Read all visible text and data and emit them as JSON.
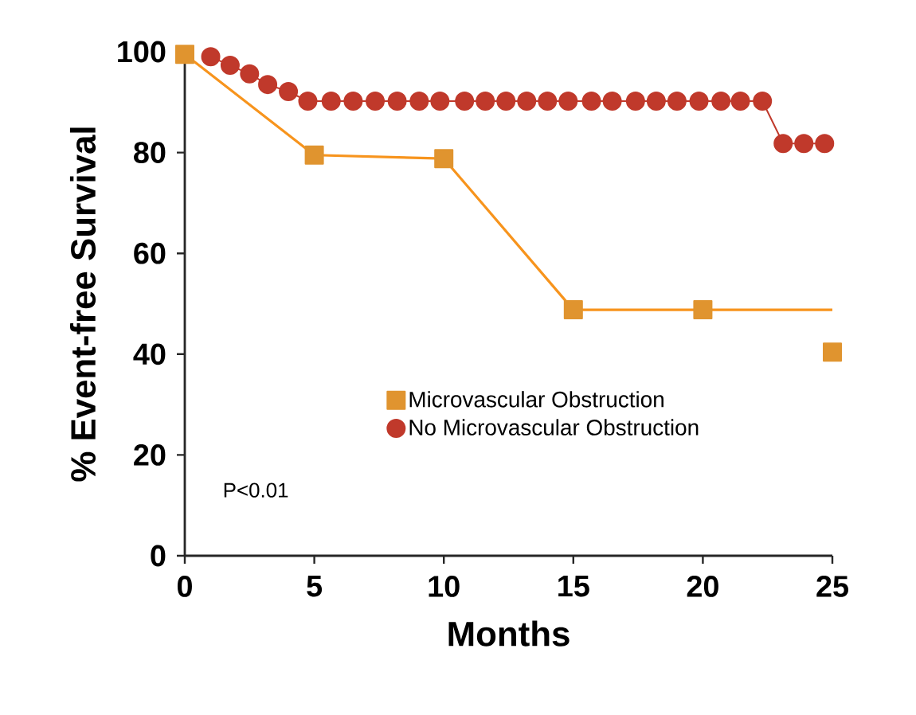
{
  "chart_data": {
    "type": "line",
    "xlabel": "Months",
    "ylabel": "% Event-free Survival",
    "xlim": [
      0,
      25
    ],
    "ylim": [
      0,
      100
    ],
    "xticks": [
      0,
      5,
      10,
      15,
      20,
      25
    ],
    "yticks": [
      0,
      20,
      40,
      60,
      80,
      100
    ],
    "grid": false,
    "legend": "right",
    "annotations": [
      "P<0.01"
    ],
    "series": [
      {
        "marker": "none",
        "color": "#f7941d",
        "x": [
          0,
          5,
          10,
          15,
          25
        ],
        "values": [
          99.5,
          79.5,
          78.8,
          48.8,
          48.8
        ]
      },
      {
        "type": "scatter",
        "marker": "square",
        "name": "Microvascular Obstruction",
        "color": "#e0942f",
        "x": [
          0,
          5,
          10,
          15,
          20,
          25
        ],
        "values": [
          99.5,
          79.5,
          78.8,
          48.8,
          48.8,
          40.4
        ]
      },
      {
        "marker": "circle",
        "name": "No Microvascular Obstruction",
        "color": "#c0392b",
        "x": [
          1.0,
          1.75,
          2.5,
          3.2,
          4.0,
          4.75,
          5.65,
          6.5,
          7.35,
          8.2,
          9.05,
          9.85,
          10.8,
          11.6,
          12.4,
          13.2,
          14.0,
          14.8,
          15.7,
          16.5,
          17.4,
          18.2,
          19.0,
          19.85,
          20.7,
          21.45,
          22.3,
          23.1,
          23.9,
          24.7
        ],
        "values": [
          99.0,
          97.3,
          95.6,
          93.5,
          92.1,
          90.2,
          90.2,
          90.2,
          90.2,
          90.2,
          90.2,
          90.2,
          90.2,
          90.2,
          90.2,
          90.2,
          90.2,
          90.2,
          90.2,
          90.2,
          90.2,
          90.2,
          90.2,
          90.2,
          90.2,
          90.2,
          90.2,
          81.8,
          81.8,
          81.8
        ]
      }
    ]
  }
}
